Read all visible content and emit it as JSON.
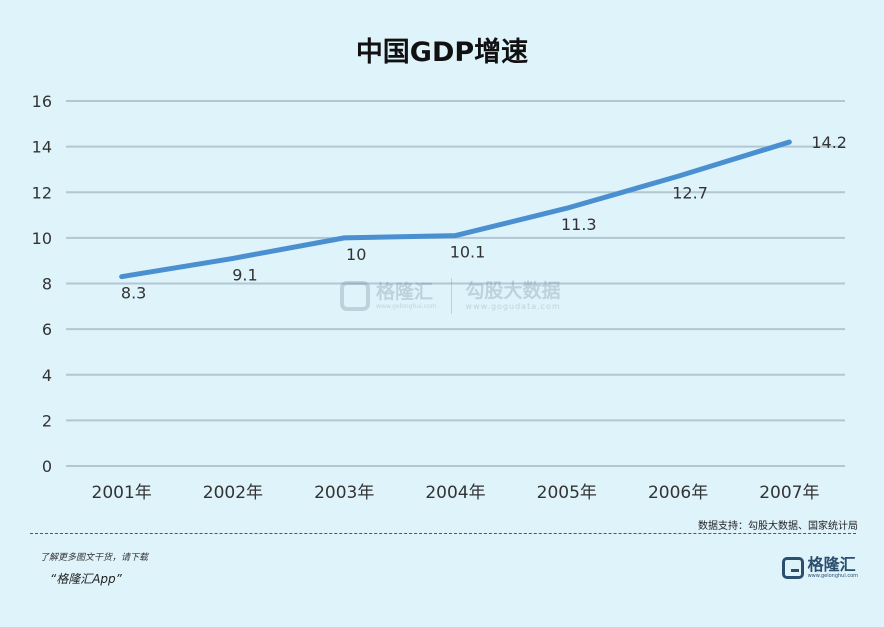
{
  "chart_data": {
    "type": "line",
    "title": "中国GDP增速",
    "categories": [
      "2001年",
      "2002年",
      "2003年",
      "2004年",
      "2005年",
      "2006年",
      "2007年"
    ],
    "series": [
      {
        "values": [
          8.3,
          9.1,
          10,
          10.1,
          11.3,
          12.7,
          14.2
        ]
      }
    ],
    "data_labels": [
      "8.3",
      "9.1",
      "10",
      "10.1",
      "11.3",
      "12.7",
      "14.2"
    ],
    "yticks": [
      "0",
      "2",
      "4",
      "6",
      "8",
      "10",
      "12",
      "14",
      "16"
    ],
    "ylim": [
      0,
      16
    ],
    "grid": true,
    "line_color": "#4a90d0"
  },
  "source": "数据支持：勾股大数据、国家统计局",
  "promo": {
    "line1": "了解更多图文干货，请下载",
    "line2": "“格隆汇App”"
  },
  "logo": {
    "name": "格隆汇",
    "url": "www.gelonghui.com"
  },
  "watermark": {
    "left_name": "格隆汇",
    "left_url": "www.gelonghui.com",
    "right_name": "勾股大数据",
    "right_url": "www.gogudata.com"
  }
}
